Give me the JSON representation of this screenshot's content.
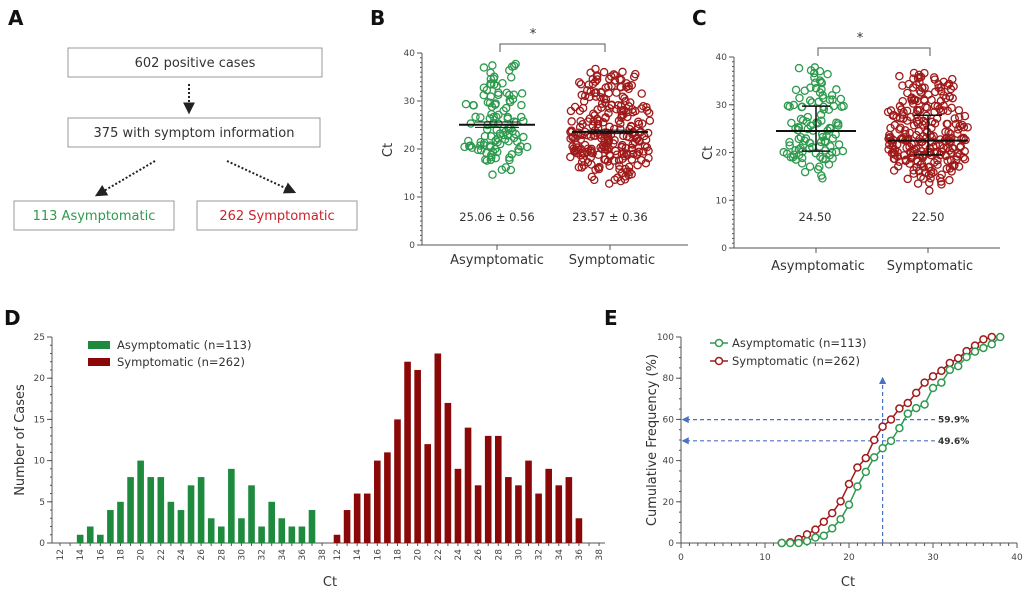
{
  "panel_letters": {
    "a": "A",
    "b": "B",
    "c": "C",
    "d": "D",
    "e": "E"
  },
  "flow": {
    "top": "602 positive cases",
    "middle": "375 with symptom information",
    "left": "113 Asymptomatic",
    "right": "262 Symptomatic"
  },
  "colors": {
    "asym": "#2e9a4e",
    "sym": "#a01a1a",
    "asym_bar": "#1d8a3e",
    "sym_bar": "#8a0808",
    "guide": "#4a72c4"
  },
  "chart_data": [
    {
      "type": "scatter",
      "panel": "B",
      "ylabel": "Ct",
      "ylim": [
        0,
        40
      ],
      "yticks": [
        "0",
        "10",
        "20",
        "30",
        "40"
      ],
      "categories": [
        "Asymptomatic",
        "Symptomatic"
      ],
      "summary_labels": [
        "25.06 ± 0.56",
        "23.57 ± 0.36"
      ],
      "means": [
        25.06,
        23.57
      ],
      "sem": [
        0.56,
        0.36
      ],
      "significance": "*"
    },
    {
      "type": "scatter",
      "panel": "C",
      "ylabel": "Ct",
      "ylim": [
        0,
        40
      ],
      "yticks": [
        "0",
        "10",
        "20",
        "30",
        "40"
      ],
      "categories": [
        "Asymptomatic",
        "Symptomatic"
      ],
      "summary_labels": [
        "24.50",
        "22.50"
      ],
      "medians": [
        24.5,
        22.5
      ],
      "iqr": [
        [
          20.3,
          29.7
        ],
        [
          19.5,
          27.8
        ]
      ],
      "significance": "*"
    },
    {
      "type": "bar",
      "panel": "D",
      "xlabel": "Ct",
      "ylabel": "Number of Cases",
      "ylim": [
        0,
        25
      ],
      "yticks": [
        "0",
        "5",
        "10",
        "15",
        "20",
        "25"
      ],
      "xticks": [
        "12",
        "14",
        "16",
        "18",
        "20",
        "22",
        "24",
        "26",
        "28",
        "30",
        "32",
        "34",
        "36",
        "38"
      ],
      "legend": [
        "Asymptomatic (n=113)",
        "Symptomatic (n=262)"
      ],
      "legend_position": "top-left",
      "series": [
        {
          "name": "Asymptomatic (n=113)",
          "x": [
            14,
            15,
            16,
            17,
            18,
            19,
            20,
            21,
            22,
            23,
            24,
            25,
            26,
            27,
            28,
            29,
            30,
            31,
            32,
            33,
            34,
            35,
            36,
            37
          ],
          "values": [
            1,
            2,
            1,
            4,
            5,
            8,
            10,
            8,
            8,
            5,
            4,
            7,
            8,
            3,
            2,
            9,
            3,
            7,
            2,
            5,
            3,
            2,
            2,
            4
          ]
        },
        {
          "name": "Symptomatic (n=262)",
          "x": [
            12,
            13,
            14,
            15,
            16,
            17,
            18,
            19,
            20,
            21,
            22,
            23,
            24,
            25,
            26,
            27,
            28,
            29,
            30,
            31,
            32,
            33,
            34,
            35,
            36
          ],
          "values": [
            1,
            4,
            6,
            6,
            10,
            11,
            15,
            22,
            21,
            12,
            23,
            17,
            9,
            14,
            7,
            13,
            13,
            8,
            7,
            10,
            6,
            9,
            7,
            8,
            3
          ]
        }
      ]
    },
    {
      "type": "line",
      "panel": "E",
      "xlabel": "Ct",
      "ylabel": "Cumulative Frequency (%)",
      "xlim": [
        0,
        40
      ],
      "ylim": [
        0,
        100
      ],
      "xticks": [
        "0",
        "10",
        "20",
        "30",
        "40"
      ],
      "yticks": [
        "0",
        "20",
        "40",
        "60",
        "80",
        "100"
      ],
      "legend": [
        "Asymptomatic (n=113)",
        "Symptomatic (n=262)"
      ],
      "legend_position": "top-left",
      "annotations": {
        "x_ref": 24,
        "sym_value": 59.9,
        "asym_value": 49.6,
        "sym_label": "59.9%",
        "asym_label": "49.6%"
      }
    }
  ]
}
